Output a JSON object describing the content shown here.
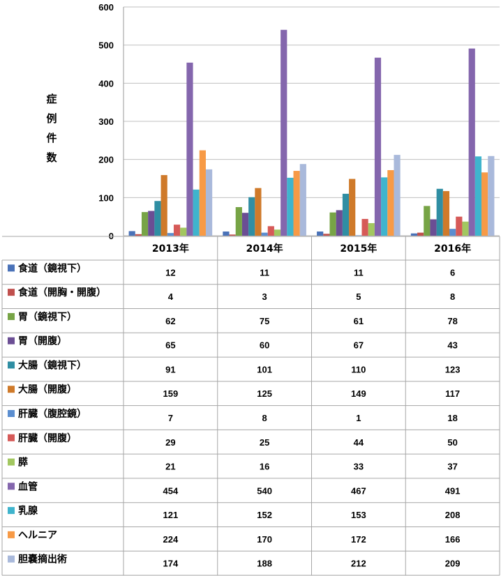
{
  "chart_data": {
    "type": "bar",
    "ylabel": "症例件数",
    "ylim": [
      0,
      600
    ],
    "yticks": [
      0,
      100,
      200,
      300,
      400,
      500,
      600
    ],
    "grid": true,
    "legend_placement": "data-table-left",
    "categories": [
      "2013年",
      "2014年",
      "2015年",
      "2016年"
    ],
    "series": [
      {
        "name": "食道（鏡視下）",
        "color": "#4a72b8",
        "values": [
          12,
          11,
          11,
          6
        ]
      },
      {
        "name": "食道（開胸・開腹）",
        "color": "#c0504d",
        "values": [
          4,
          3,
          5,
          8
        ]
      },
      {
        "name": "胃（鏡視下）",
        "color": "#77a446",
        "values": [
          62,
          75,
          61,
          78
        ]
      },
      {
        "name": "胃（開腹）",
        "color": "#6b4e94",
        "values": [
          65,
          60,
          67,
          43
        ]
      },
      {
        "name": "大腸（鏡視下）",
        "color": "#2f8ea3",
        "values": [
          91,
          101,
          110,
          123
        ]
      },
      {
        "name": "大腸（開腹）",
        "color": "#cf7a2a",
        "values": [
          159,
          125,
          149,
          117
        ]
      },
      {
        "name": "肝臓（腹腔鏡）",
        "color": "#5b8ed0",
        "values": [
          7,
          8,
          1,
          18
        ]
      },
      {
        "name": "肝臓（開腹）",
        "color": "#d65a58",
        "values": [
          29,
          25,
          44,
          50
        ]
      },
      {
        "name": "膵",
        "color": "#a2c760",
        "values": [
          21,
          16,
          33,
          37
        ]
      },
      {
        "name": "血管",
        "color": "#8466ad",
        "values": [
          454,
          540,
          467,
          491
        ]
      },
      {
        "name": "乳腺",
        "color": "#3fb4cd",
        "values": [
          121,
          152,
          153,
          208
        ]
      },
      {
        "name": "ヘルニア",
        "color": "#f79a46",
        "values": [
          224,
          170,
          172,
          166
        ]
      },
      {
        "name": "胆嚢摘出術",
        "color": "#a9b9db",
        "values": [
          174,
          188,
          212,
          209
        ]
      }
    ]
  }
}
